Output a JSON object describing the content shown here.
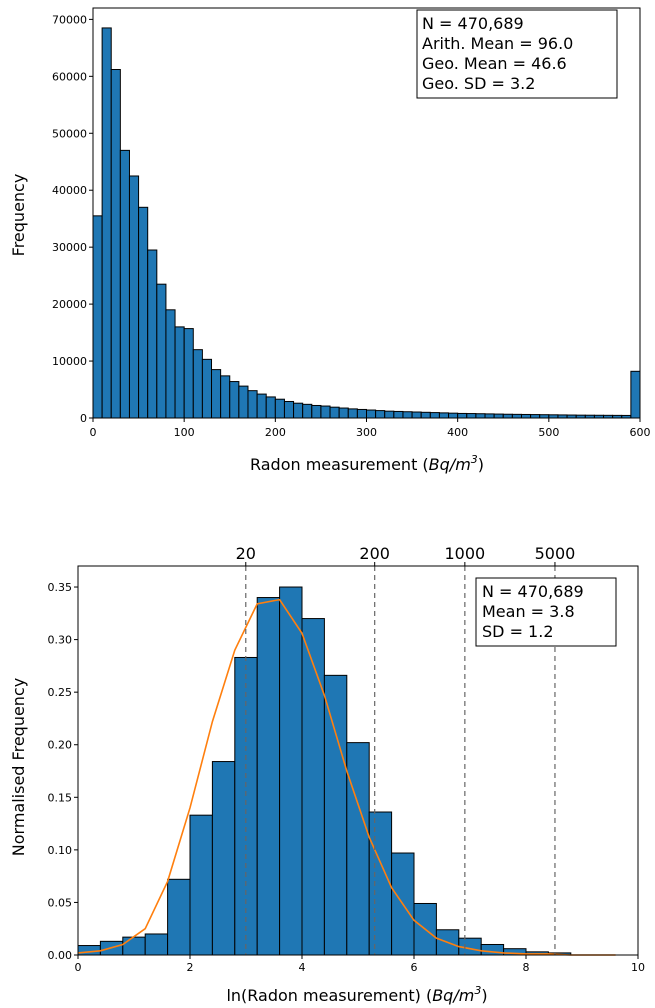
{
  "chart_data": [
    {
      "type": "bar",
      "subtype": "histogram",
      "xlabel": "Radon measurement (Bq/m³)",
      "ylabel": "Frequency",
      "xlim": [
        0,
        600
      ],
      "ylim": [
        0,
        72000
      ],
      "xticks": [
        0,
        100,
        200,
        300,
        400,
        500,
        600
      ],
      "yticks": [
        0,
        10000,
        20000,
        30000,
        40000,
        50000,
        60000,
        70000
      ],
      "bin_width": 10,
      "bar_color": "#1f77b4",
      "values": [
        35500,
        68500,
        61200,
        47000,
        42500,
        37000,
        29500,
        23500,
        19000,
        16000,
        15700,
        12000,
        10300,
        8500,
        7400,
        6400,
        5600,
        4800,
        4200,
        3700,
        3300,
        2900,
        2600,
        2400,
        2200,
        2100,
        1900,
        1750,
        1600,
        1500,
        1400,
        1300,
        1200,
        1150,
        1100,
        1050,
        1000,
        950,
        900,
        850,
        800,
        780,
        750,
        720,
        690,
        660,
        640,
        620,
        600,
        580,
        560,
        540,
        520,
        500,
        490,
        480,
        470,
        460,
        450,
        8200
      ],
      "annotation": [
        "N = 470,689",
        "Arith. Mean = 96.0",
        "Geo. Mean = 46.6",
        "Geo. SD = 3.2"
      ],
      "grid": false
    },
    {
      "type": "bar",
      "subtype": "histogram",
      "xlabel": "ln(Radon measurement) (Bq/m³)",
      "ylabel": "Normalised Frequency",
      "xlim": [
        0,
        10
      ],
      "ylim": [
        0,
        0.37
      ],
      "xticks": [
        0,
        2,
        4,
        6,
        8,
        10
      ],
      "yticks": [
        0.0,
        0.05,
        0.1,
        0.15,
        0.2,
        0.25,
        0.3,
        0.35
      ],
      "bar_color": "#1f77b4",
      "bins": [
        {
          "x0": 0.0,
          "x1": 0.4,
          "value": 0.009
        },
        {
          "x0": 0.4,
          "x1": 0.8,
          "value": 0.013
        },
        {
          "x0": 0.8,
          "x1": 1.2,
          "value": 0.017
        },
        {
          "x0": 1.2,
          "x1": 1.6,
          "value": 0.02
        },
        {
          "x0": 1.6,
          "x1": 2.0,
          "value": 0.072
        },
        {
          "x0": 2.0,
          "x1": 2.4,
          "value": 0.133
        },
        {
          "x0": 2.4,
          "x1": 2.8,
          "value": 0.184
        },
        {
          "x0": 2.8,
          "x1": 3.2,
          "value": 0.283
        },
        {
          "x0": 3.2,
          "x1": 3.6,
          "value": 0.34
        },
        {
          "x0": 3.6,
          "x1": 4.0,
          "value": 0.35
        },
        {
          "x0": 4.0,
          "x1": 4.4,
          "value": 0.32
        },
        {
          "x0": 4.4,
          "x1": 4.8,
          "value": 0.266
        },
        {
          "x0": 4.8,
          "x1": 5.2,
          "value": 0.202
        },
        {
          "x0": 5.2,
          "x1": 5.6,
          "value": 0.136
        },
        {
          "x0": 5.6,
          "x1": 6.0,
          "value": 0.097
        },
        {
          "x0": 6.0,
          "x1": 6.4,
          "value": 0.049
        },
        {
          "x0": 6.4,
          "x1": 6.8,
          "value": 0.024
        },
        {
          "x0": 6.8,
          "x1": 7.2,
          "value": 0.016
        },
        {
          "x0": 7.2,
          "x1": 7.6,
          "value": 0.01
        },
        {
          "x0": 7.6,
          "x1": 8.0,
          "value": 0.006
        },
        {
          "x0": 8.0,
          "x1": 8.4,
          "value": 0.003
        },
        {
          "x0": 8.4,
          "x1": 8.8,
          "value": 0.002
        }
      ],
      "fit_curve": {
        "color": "#ff7f0e",
        "x": [
          0.0,
          0.4,
          0.8,
          1.2,
          1.6,
          2.0,
          2.4,
          2.8,
          3.2,
          3.6,
          4.0,
          4.4,
          4.8,
          5.2,
          5.6,
          6.0,
          6.4,
          6.8,
          7.2,
          7.6,
          8.0,
          8.4,
          8.8,
          9.2,
          9.6
        ],
        "y": [
          0.002,
          0.004,
          0.01,
          0.025,
          0.07,
          0.14,
          0.222,
          0.29,
          0.334,
          0.338,
          0.306,
          0.247,
          0.175,
          0.112,
          0.064,
          0.033,
          0.016,
          0.008,
          0.004,
          0.002,
          0.001,
          0.001,
          0.0,
          0.0,
          0.0
        ]
      },
      "reference_lines": [
        {
          "x": 2.996,
          "label": "20"
        },
        {
          "x": 5.298,
          "label": "200"
        },
        {
          "x": 6.908,
          "label": "1000"
        },
        {
          "x": 8.517,
          "label": "5000"
        }
      ],
      "annotation": [
        "N = 470,689",
        "Mean = 3.8",
        "SD = 1.2"
      ],
      "grid": false
    }
  ]
}
